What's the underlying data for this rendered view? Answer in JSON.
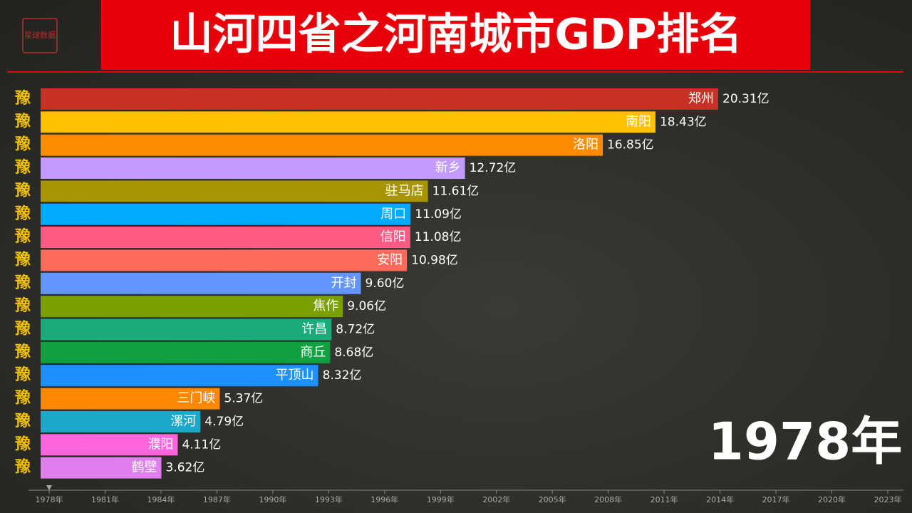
{
  "chart_data": {
    "type": "bar",
    "orientation": "horizontal",
    "title": "山河四省之河南城市GDP排名",
    "logo": "星球数据",
    "row_icon": "豫",
    "year_label": "1978年",
    "categories": [
      "郑州",
      "南阳",
      "洛阳",
      "新乡",
      "驻马店",
      "周口",
      "信阳",
      "安阳",
      "开封",
      "焦作",
      "许昌",
      "商丘",
      "平顶山",
      "三门峡",
      "漯河",
      "濮阳",
      "鹤壁"
    ],
    "values": [
      20.31,
      18.43,
      16.85,
      12.72,
      11.61,
      11.09,
      11.08,
      10.98,
      9.6,
      9.06,
      8.72,
      8.68,
      8.32,
      5.37,
      4.79,
      4.11,
      3.62
    ],
    "value_labels": [
      "20.31亿",
      "18.43亿",
      "16.85亿",
      "12.72亿",
      "11.61亿",
      "11.09亿",
      "11.08亿",
      "10.98亿",
      "9.60亿",
      "9.06亿",
      "8.72亿",
      "8.68亿",
      "8.32亿",
      "5.37亿",
      "4.79亿",
      "4.11亿",
      "3.62亿"
    ],
    "colors": [
      "#c83226",
      "#ffc000",
      "#ff8c00",
      "#c39bff",
      "#a89400",
      "#00aaff",
      "#ff5a82",
      "#ff6a5a",
      "#6495ff",
      "#7aa000",
      "#1aab7a",
      "#10a040",
      "#1e90ff",
      "#ff8800",
      "#1aa8c8",
      "#ff66dd",
      "#e07ef0"
    ],
    "timeline": [
      "1978年",
      "1981年",
      "1984年",
      "1987年",
      "1990年",
      "1993年",
      "1996年",
      "1999年",
      "2002年",
      "2005年",
      "2008年",
      "2011年",
      "2014年",
      "2017年",
      "2020年",
      "2023年"
    ]
  }
}
